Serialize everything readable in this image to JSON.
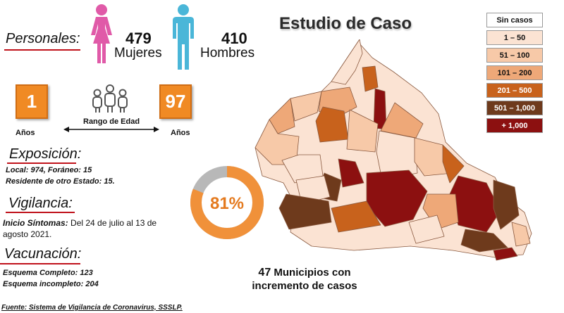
{
  "header": {
    "title": "Estudio de Caso"
  },
  "personales": {
    "label": "Personales:",
    "women": {
      "count": "479",
      "label": "Mujeres"
    },
    "men": {
      "count": "410",
      "label": "Hombres"
    }
  },
  "age": {
    "min": "1",
    "max": "97",
    "min_label": "Años",
    "max_label": "Años",
    "range_label": "Rango de Edad"
  },
  "exposicion": {
    "label": "Exposición:",
    "line1": "Local:  974, Foráneo: 15",
    "line2": "Residente de otro Estado: 15."
  },
  "vigilancia": {
    "label": "Vigilancia:",
    "inicio_label": "Inicio Síntomas:",
    "inicio_text1": " Del 24 de julio al 13 de",
    "inicio_text2": "agosto 2021."
  },
  "donut": {
    "value_text": "81%",
    "fraction": 0.81
  },
  "vacunacion": {
    "label": "Vacunación:",
    "line1": "Esquema Completo: 123",
    "line2": "Esquema incompleto: 204"
  },
  "municipios": {
    "count": "47",
    "text1": "Municipios con",
    "text2": "incremento de casos"
  },
  "legend": [
    {
      "label": "Sin casos",
      "color": "#ffffff",
      "text_color": "#111111"
    },
    {
      "label": "1 – 50",
      "color": "#fbe3d3",
      "text_color": "#111111"
    },
    {
      "label": "51 – 100",
      "color": "#f7c9a8",
      "text_color": "#111111"
    },
    {
      "label": "101 – 200",
      "color": "#eea878",
      "text_color": "#111111"
    },
    {
      "label": "201 – 500",
      "color": "#c8621c",
      "text_color": "#ffffff"
    },
    {
      "label": "501 – 1,000",
      "color": "#6e3a1c",
      "text_color": "#ffffff"
    },
    {
      "label": "+ 1,000",
      "color": "#8c1010",
      "text_color": "#ffffff"
    }
  ],
  "footer": {
    "source": "Fuente: Sistema de Vigilancia de Coronavirus, SSSLP."
  }
}
